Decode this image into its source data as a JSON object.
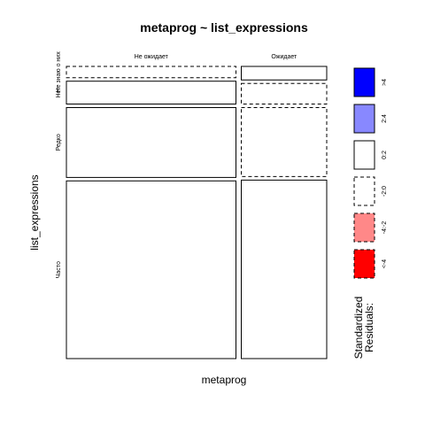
{
  "chart_data": {
    "type": "mosaic",
    "title": "metaprog ~ list_expressions",
    "xlabel": "metaprog",
    "ylabel": "list_expressions",
    "x_categories": [
      "Не ожидает",
      "Ожидает"
    ],
    "y_categories": [
      "Не знаю о них",
      "Нет",
      "Редко",
      "Часто"
    ],
    "x_proportions": [
      0.665,
      0.335
    ],
    "cells": [
      {
        "x": "Не ожидает",
        "y": "Не знаю о них",
        "proportion": 0.04,
        "residual_class": "-2:0"
      },
      {
        "x": "Не ожидает",
        "y": "Нет",
        "proportion": 0.081,
        "residual_class": "0:2"
      },
      {
        "x": "Не ожидает",
        "y": "Редко",
        "proportion": 0.248,
        "residual_class": "0:2"
      },
      {
        "x": "Не ожидает",
        "y": "Часто",
        "proportion": 0.631,
        "residual_class": "0:2"
      },
      {
        "x": "Ожидает",
        "y": "Не знаю о них",
        "proportion": 0.048,
        "residual_class": "0:2"
      },
      {
        "x": "Ожидает",
        "y": "Нет",
        "proportion": 0.073,
        "residual_class": "-2:0"
      },
      {
        "x": "Ожидает",
        "y": "Редко",
        "proportion": 0.245,
        "residual_class": "-2:0"
      },
      {
        "x": "Ожидает",
        "y": "Часто",
        "proportion": 0.634,
        "residual_class": "0:2"
      }
    ],
    "legend": {
      "title_line1": "Standardized",
      "title_line2": "Residuals:",
      "entries": [
        {
          "label": ">4",
          "fill": "#0000ff",
          "dashed": false
        },
        {
          "label": "2:4",
          "fill": "#8888ff",
          "dashed": false
        },
        {
          "label": "0:2",
          "fill": "#ffffff",
          "dashed": false
        },
        {
          "label": "-2:0",
          "fill": "#ffffff",
          "dashed": true
        },
        {
          "label": "-4:-2",
          "fill": "#ff8888",
          "dashed": true
        },
        {
          "label": "<-4",
          "fill": "#ff0000",
          "dashed": true
        }
      ]
    }
  }
}
